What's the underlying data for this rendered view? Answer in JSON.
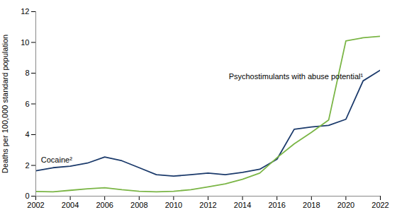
{
  "chart_data": {
    "type": "line",
    "ylabel": "Deaths per 100,000 standard population",
    "x": [
      2002,
      2003,
      2004,
      2005,
      2006,
      2007,
      2008,
      2009,
      2010,
      2011,
      2012,
      2013,
      2014,
      2015,
      2016,
      2017,
      2018,
      2019,
      2020,
      2021,
      2022
    ],
    "series": [
      {
        "color": "#1b3a6b",
        "values": [
          1.65,
          1.85,
          1.95,
          2.15,
          2.55,
          2.3,
          1.85,
          1.4,
          1.3,
          1.4,
          1.5,
          1.4,
          1.55,
          1.75,
          2.4,
          4.35,
          4.5,
          4.6,
          5.0,
          7.5,
          8.2
        ]
      },
      {
        "color": "#7ab545",
        "values": [
          0.3,
          0.28,
          0.38,
          0.48,
          0.55,
          0.42,
          0.32,
          0.28,
          0.32,
          0.42,
          0.6,
          0.8,
          1.1,
          1.5,
          2.5,
          3.4,
          4.15,
          4.95,
          10.1,
          10.3,
          10.4
        ]
      }
    ],
    "annotations": [
      {
        "text": "Cocaine²",
        "x": 2002.3,
        "y": 2.2
      },
      {
        "text": "Psychostimulants with abuse potential¹",
        "x": 2013.2,
        "y": 7.6
      }
    ],
    "xlim": [
      2002,
      2022
    ],
    "xticks": [
      2002,
      2004,
      2006,
      2008,
      2010,
      2012,
      2014,
      2016,
      2018,
      2020,
      2022
    ],
    "ylim": [
      0,
      12
    ],
    "yticks": [
      0,
      2,
      4,
      6,
      8,
      10,
      12
    ],
    "grid": false
  }
}
